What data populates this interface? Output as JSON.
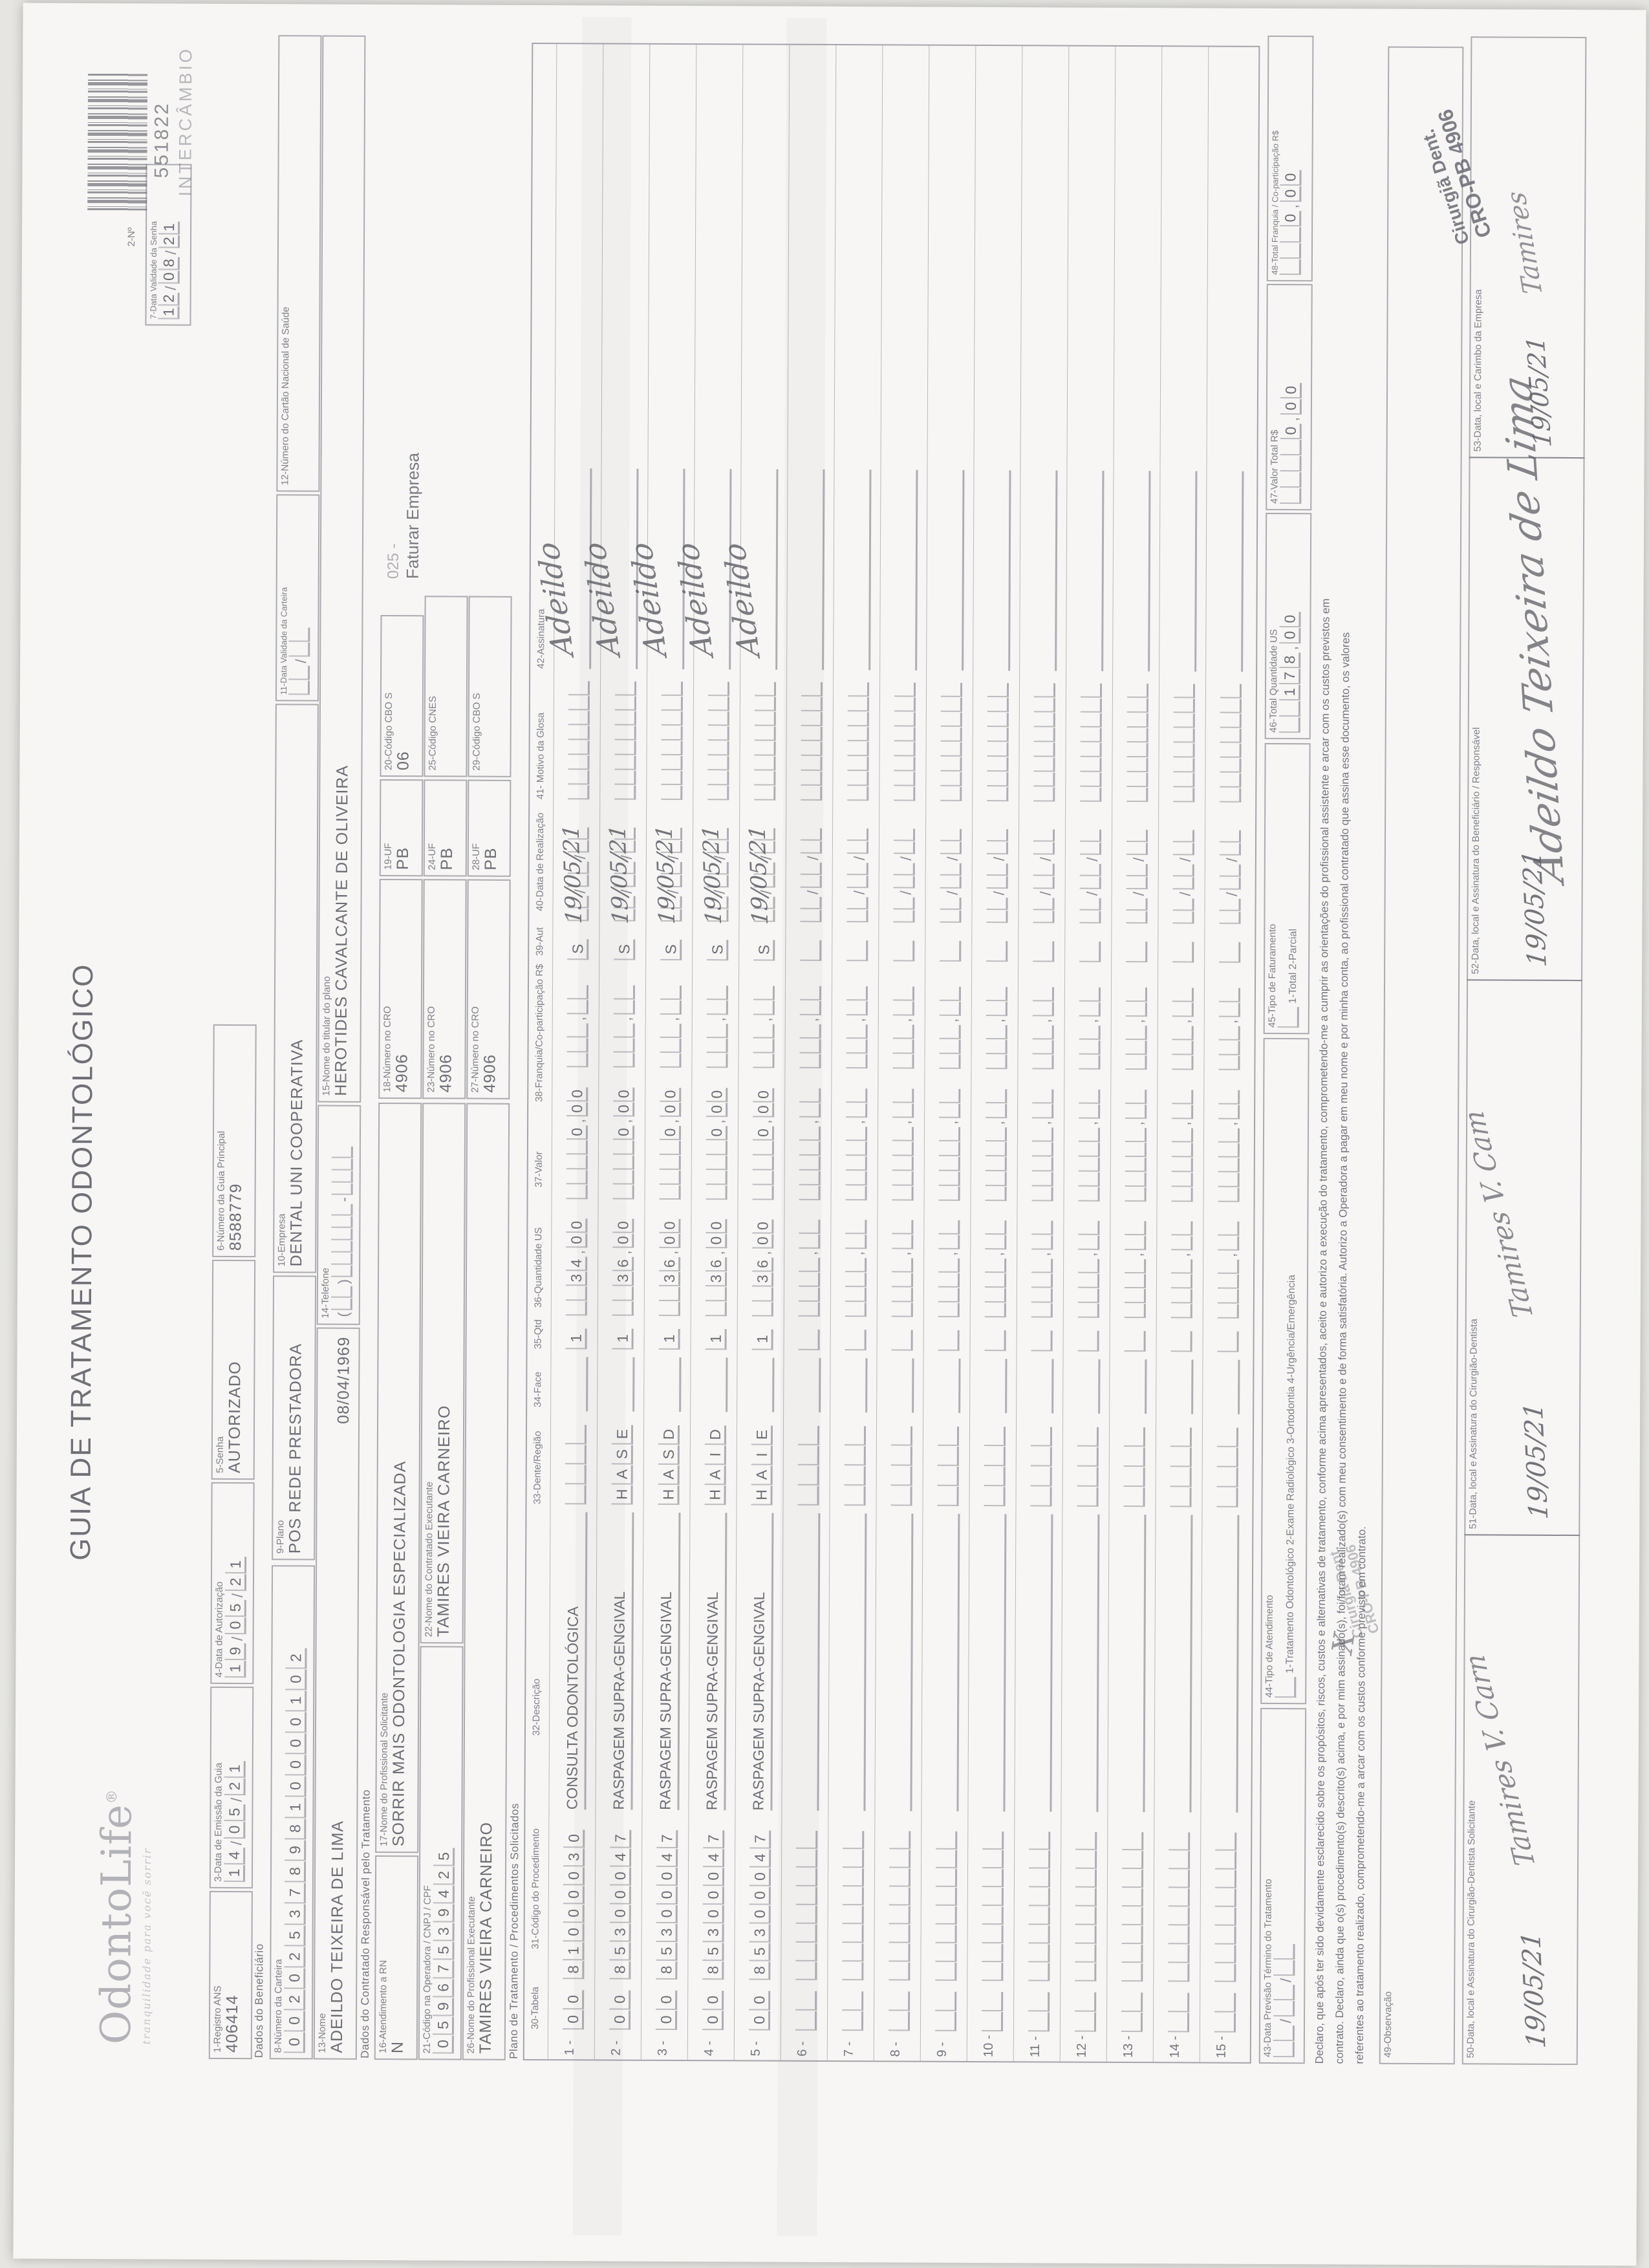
{
  "logo": {
    "name": "OdontoLife",
    "reg": "®",
    "tagline": "tranquilidade para você sorrir"
  },
  "title": "GUIA DE TRATAMENTO ODONTOLÓGICO",
  "barcode": {
    "label": "2-Nº",
    "number": "551822",
    "tag": "INTERCÂMBIO"
  },
  "sections": {
    "beneficiario": "Dados do Beneficiário",
    "contratado": "Dados do Contratado Responsável pelo Tratamento",
    "plano": "Plano de Tratamento / Procedimentos Solicitados"
  },
  "fields": {
    "f1": {
      "label": "1-Registro ANS",
      "value": "406414"
    },
    "f3": {
      "label": "3-Data de Emissão da Guia",
      "value": "14/05/21"
    },
    "f4": {
      "label": "4-Data de Autorização",
      "value": "19/05/21"
    },
    "f5": {
      "label": "5-Senha",
      "value": "AUTORIZADO"
    },
    "f6": {
      "label": "6-Número da Guia Principal",
      "value": "8588779"
    },
    "f7": {
      "label": "7-Data Validade da Senha",
      "value": "12/08/21"
    },
    "f8": {
      "label": "8-Número da Carteira",
      "value": "0020253789810000102"
    },
    "f9": {
      "label": "9-Plano",
      "value": "POS REDE PRESTADORA"
    },
    "f10": {
      "label": "10-Empresa",
      "value": "DENTAL UNI COOPERATIVA"
    },
    "f11": {
      "label": "11-Data Validade da Carteira",
      "value": "  /  "
    },
    "f12": {
      "label": "12-Número do Cartão Nacional de Saúde",
      "value": ""
    },
    "f13": {
      "label": "13-Nome",
      "value": "ADEILDO TEIXEIRA DE LIMA",
      "birthdate": "08/04/1969"
    },
    "f14": {
      "label": "14-Telefone",
      "value": "(  )      -    "
    },
    "f15": {
      "label": "15-Nome do titular do plano",
      "value": "HEROTIDES CAVALCANTE DE OLIVEIRA"
    },
    "f16": {
      "label": "16-Atendimento a RN",
      "value": "N"
    },
    "f17": {
      "label": "17-Nome do Profissional Solicitante",
      "value": "SORRIR MAIS ODONTOLOGIA ESPECIALIZADA"
    },
    "f18": {
      "label": "18-Número no CRO",
      "value": "4906"
    },
    "f19": {
      "label": "19-UF",
      "value": "PB"
    },
    "f20": {
      "label": "20-Código CBO S",
      "value": "06"
    },
    "f21": {
      "label": "21-Código na Operadora / CNPJ / CPF",
      "value": "05967539425"
    },
    "f22": {
      "label": "22-Nome do Contratado Executante",
      "value": "TAMIRES VIEIRA CARNEIRO"
    },
    "f23": {
      "label": "23-Número no CRO",
      "value": "4906"
    },
    "f24": {
      "label": "24-UF",
      "value": "PB"
    },
    "f25": {
      "label": "25-Código CNES",
      "value": ""
    },
    "f26": {
      "label": "26-Nome do Profissional Executante",
      "value": "TAMIRES VIEIRA CARNEIRO"
    },
    "f27": {
      "label": "27-Número no CRO",
      "value": "4906"
    },
    "f28": {
      "label": "28-UF",
      "value": "PB"
    },
    "f29": {
      "label": "29-Código CBO S",
      "value": ""
    }
  },
  "billing_note": {
    "code": "025 -",
    "text": "Faturar Empresa"
  },
  "table": {
    "headers": {
      "t30": "30-Tabela",
      "t31": "31-Código do Procedimento",
      "t32": "32-Descrição",
      "t33": "33-Dente/Região",
      "t34": "34-Face",
      "t35": "35-Qtd",
      "t36": "36-Quantidade US",
      "t37": "37-Valor",
      "t38": "38-Franquia/Co-participação R$",
      "t39": "39-Aut",
      "t40": "40-Data de Realização",
      "t41": "41- Motivo da Glosa",
      "t42": "42-Assinatura"
    },
    "rows": [
      {
        "n": "1",
        "tabela": "00",
        "code": "81000030",
        "desc": "CONSULTA ODONTOLÓGICA",
        "dente": "",
        "qtd": "1",
        "us": "34,00",
        "valor": "0,00",
        "aut": "S",
        "date": "19/05/21",
        "sig": "Adeildo"
      },
      {
        "n": "2",
        "tabela": "00",
        "code": "85300047",
        "desc": "RASPAGEM SUPRA-GENGIVAL",
        "dente": "HASE",
        "qtd": "1",
        "us": "36,00",
        "valor": "0,00",
        "aut": "S",
        "date": "19/05/21",
        "sig": "Adeildo"
      },
      {
        "n": "3",
        "tabela": "00",
        "code": "85300047",
        "desc": "RASPAGEM SUPRA-GENGIVAL",
        "dente": "HASD",
        "qtd": "1",
        "us": "36,00",
        "valor": "0,00",
        "aut": "S",
        "date": "19/05/21",
        "sig": "Adeildo"
      },
      {
        "n": "4",
        "tabela": "00",
        "code": "85300047",
        "desc": "RASPAGEM SUPRA-GENGIVAL",
        "dente": "HAID",
        "qtd": "1",
        "us": "36,00",
        "valor": "0,00",
        "aut": "S",
        "date": "19/05/21",
        "sig": "Adeildo"
      },
      {
        "n": "5",
        "tabela": "00",
        "code": "85300047",
        "desc": "RASPAGEM SUPRA-GENGIVAL",
        "dente": "HAIE",
        "qtd": "1",
        "us": "36,00",
        "valor": "0,00",
        "aut": "S",
        "date": "19/05/21",
        "sig": "Adeildo"
      },
      {
        "n": "6"
      },
      {
        "n": "7"
      },
      {
        "n": "8"
      },
      {
        "n": "9"
      },
      {
        "n": "10"
      },
      {
        "n": "11"
      },
      {
        "n": "12"
      },
      {
        "n": "13"
      },
      {
        "n": "14"
      },
      {
        "n": "15"
      }
    ]
  },
  "footer": {
    "f43": {
      "label": "43-Data Previsão Término do Tratamento",
      "value": "  /  /  "
    },
    "f44": {
      "label": "44-Tipo de Atendimento",
      "options": "1-Tratamento Odontológico  2-Exame Radiológico  3-Ortodontia  4-Urgência/Emergência",
      "value": " "
    },
    "f45": {
      "label": "45-Tipo de Faturamento",
      "options": "1-Total  2-Parcial",
      "value": " "
    },
    "f46": {
      "label": "46-Total Quantidade US",
      "value": "178,00"
    },
    "f47": {
      "label": "47-Valor Total R$",
      "value": "0,00"
    },
    "f48": {
      "label": "48-Total Franquia / Co-participação R$",
      "value": "0,00"
    },
    "declaro": [
      "Declaro, que após ter sido devidamente esclarecido sobre os propósitos, riscos, custos e alternativas de tratamento, conforme acima apresentados, aceito e autorizo a execução do tratamento, comprometendo-me a cumprir as orientações do profissional assistente e arcar com os custos previstos em",
      "contrato. Declaro, ainda que o(s) procedimento(s) descrito(s) acima, e por mim assinado(s), foi/foram realizado(s) com meu consentimento e de forma satisfatória. Autorizo a Operadora a pagar em meu nome e por minha conta, ao profissional contratado que assina esse documento, os valores",
      "referentes ao tratamento realizado, comprometendo-me a arcar com os custos conforme previsto em contrato."
    ],
    "mark": "X",
    "f49": {
      "label": "49-Observação"
    },
    "f50": {
      "label": "50-Data, local e Assinatura do Cirurgião-Dentista Solicitante",
      "hw_date": "19/05/21",
      "hw_sig": "Tamires V. Carn"
    },
    "f51": {
      "label": "51-Data, local e Assinatura do Cirurgião-Dentista",
      "hw_date": "19/05/21",
      "hw_sig": "Tamires V. Cam"
    },
    "f52": {
      "label": "52-Data, local e Assinatura do Beneficiário / Responsável",
      "hw_date": "19/05/21",
      "hw_sig": "Adeildo Teixeira de Lima"
    },
    "f53": {
      "label": "53-Data, local e Carimbo da Empresa",
      "hw_date": "19/05/21",
      "hw_sig": "Tamires",
      "stamp": [
        "Cirurgiã Dent.",
        "CRO-PB 4906"
      ]
    }
  }
}
